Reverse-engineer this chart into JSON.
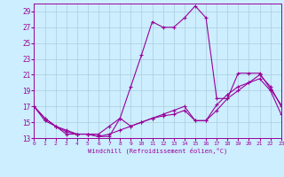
{
  "xlabel": "Windchill (Refroidissement éolien,°C)",
  "background_color": "#cceeff",
  "line_color": "#990099",
  "grid_color": "#aaccdd",
  "x_ticks": [
    0,
    1,
    2,
    3,
    4,
    5,
    6,
    7,
    8,
    9,
    10,
    11,
    12,
    13,
    14,
    15,
    16,
    17,
    18,
    19,
    20,
    21,
    22,
    23
  ],
  "y_ticks": [
    13,
    15,
    17,
    19,
    21,
    23,
    25,
    27,
    29
  ],
  "xlim": [
    0,
    23
  ],
  "ylim": [
    13,
    30
  ],
  "lines": [
    {
      "x": [
        0,
        1,
        2,
        3,
        4,
        5,
        6,
        7,
        8,
        9,
        10,
        11,
        12,
        13,
        14,
        15,
        16,
        17,
        18,
        19,
        20,
        21,
        22,
        23
      ],
      "y": [
        17,
        15.5,
        14.5,
        13.5,
        13.5,
        13.5,
        13.2,
        13.2,
        15.5,
        19.5,
        23.5,
        27.7,
        27.0,
        27.0,
        28.2,
        29.7,
        28.2,
        18,
        18,
        21.2,
        21.2,
        21.2,
        19.2,
        17.2
      ]
    },
    {
      "x": [
        0,
        1,
        2,
        3,
        4,
        5,
        6,
        7,
        8,
        9,
        10,
        11,
        12,
        13,
        14,
        15,
        16,
        17,
        18,
        19,
        20,
        21,
        22,
        23
      ],
      "y": [
        17,
        15.5,
        14.5,
        14.0,
        13.5,
        13.5,
        13.5,
        14.5,
        15.5,
        14.5,
        15.0,
        15.5,
        16.0,
        16.5,
        17.0,
        15.2,
        15.2,
        17.2,
        18.5,
        19.5,
        20.0,
        20.5,
        19.0,
        16.0
      ]
    },
    {
      "x": [
        0,
        1,
        2,
        3,
        4,
        5,
        6,
        7,
        8,
        9,
        10,
        11,
        12,
        13,
        14,
        15,
        16,
        17,
        18,
        19,
        20,
        21,
        22,
        23
      ],
      "y": [
        17,
        15.2,
        14.5,
        13.8,
        13.5,
        13.5,
        13.2,
        13.5,
        14.0,
        14.5,
        15.0,
        15.5,
        15.8,
        16.0,
        16.5,
        15.2,
        15.2,
        16.5,
        18.0,
        19.0,
        20.0,
        21.0,
        19.5,
        17.0
      ]
    }
  ]
}
